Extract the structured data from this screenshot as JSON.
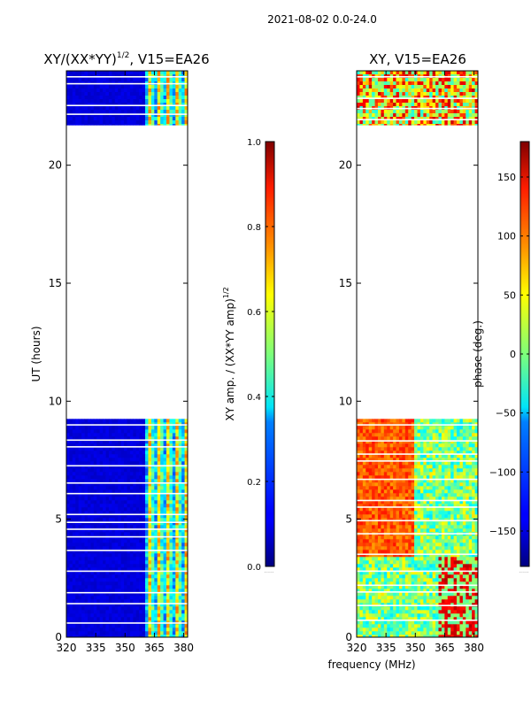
{
  "suptitle": "2021-08-02 0.0-24.0",
  "chart_data": [
    {
      "type": "heatmap",
      "title_main": "XY/(XX*YY)",
      "title_exp": "1/2",
      "title_suffix": ", V15=EA26",
      "xlabel": "",
      "ylabel": "UT (hours)",
      "xlim": [
        320,
        382
      ],
      "ylim": [
        0,
        24
      ],
      "xticks": [
        "320",
        "335",
        "350",
        "365",
        "380"
      ],
      "xtick_values": [
        320,
        335,
        350,
        365,
        380
      ],
      "yticks": [
        "0",
        "5",
        "10",
        "15",
        "20"
      ],
      "ytick_values": [
        0,
        5,
        10,
        15,
        20
      ],
      "data_spans_hours": [
        [
          0,
          9.25
        ],
        [
          21.7,
          24
        ]
      ],
      "colorbar": {
        "label_main": "XY amp. / (XX*YY amp)",
        "label_exp": "1/2",
        "range": [
          0.0,
          1.0
        ],
        "ticks": [
          "0.0",
          "0.2",
          "0.4",
          "0.6",
          "0.8",
          "1.0"
        ],
        "tick_values": [
          0.0,
          0.2,
          0.4,
          0.6,
          0.8,
          1.0
        ]
      }
    },
    {
      "type": "heatmap",
      "title": "XY, V15=EA26",
      "xlabel": "frequency (MHz)",
      "ylabel": "",
      "xlim": [
        320,
        382
      ],
      "ylim": [
        0,
        24
      ],
      "xticks": [
        "320",
        "335",
        "350",
        "365",
        "380"
      ],
      "xtick_values": [
        320,
        335,
        350,
        365,
        380
      ],
      "yticks": [
        "0",
        "5",
        "10",
        "15",
        "20"
      ],
      "ytick_values": [
        0,
        5,
        10,
        15,
        20
      ],
      "data_spans_hours": [
        [
          0,
          9.25
        ],
        [
          21.7,
          24
        ]
      ],
      "colorbar": {
        "label": "phase (deg.)",
        "range": [
          -180,
          180
        ],
        "ticks": [
          "−150",
          "−100",
          "−50",
          "0",
          "50",
          "100",
          "150"
        ],
        "tick_values": [
          -150,
          -100,
          -50,
          0,
          50,
          100,
          150
        ]
      }
    }
  ]
}
